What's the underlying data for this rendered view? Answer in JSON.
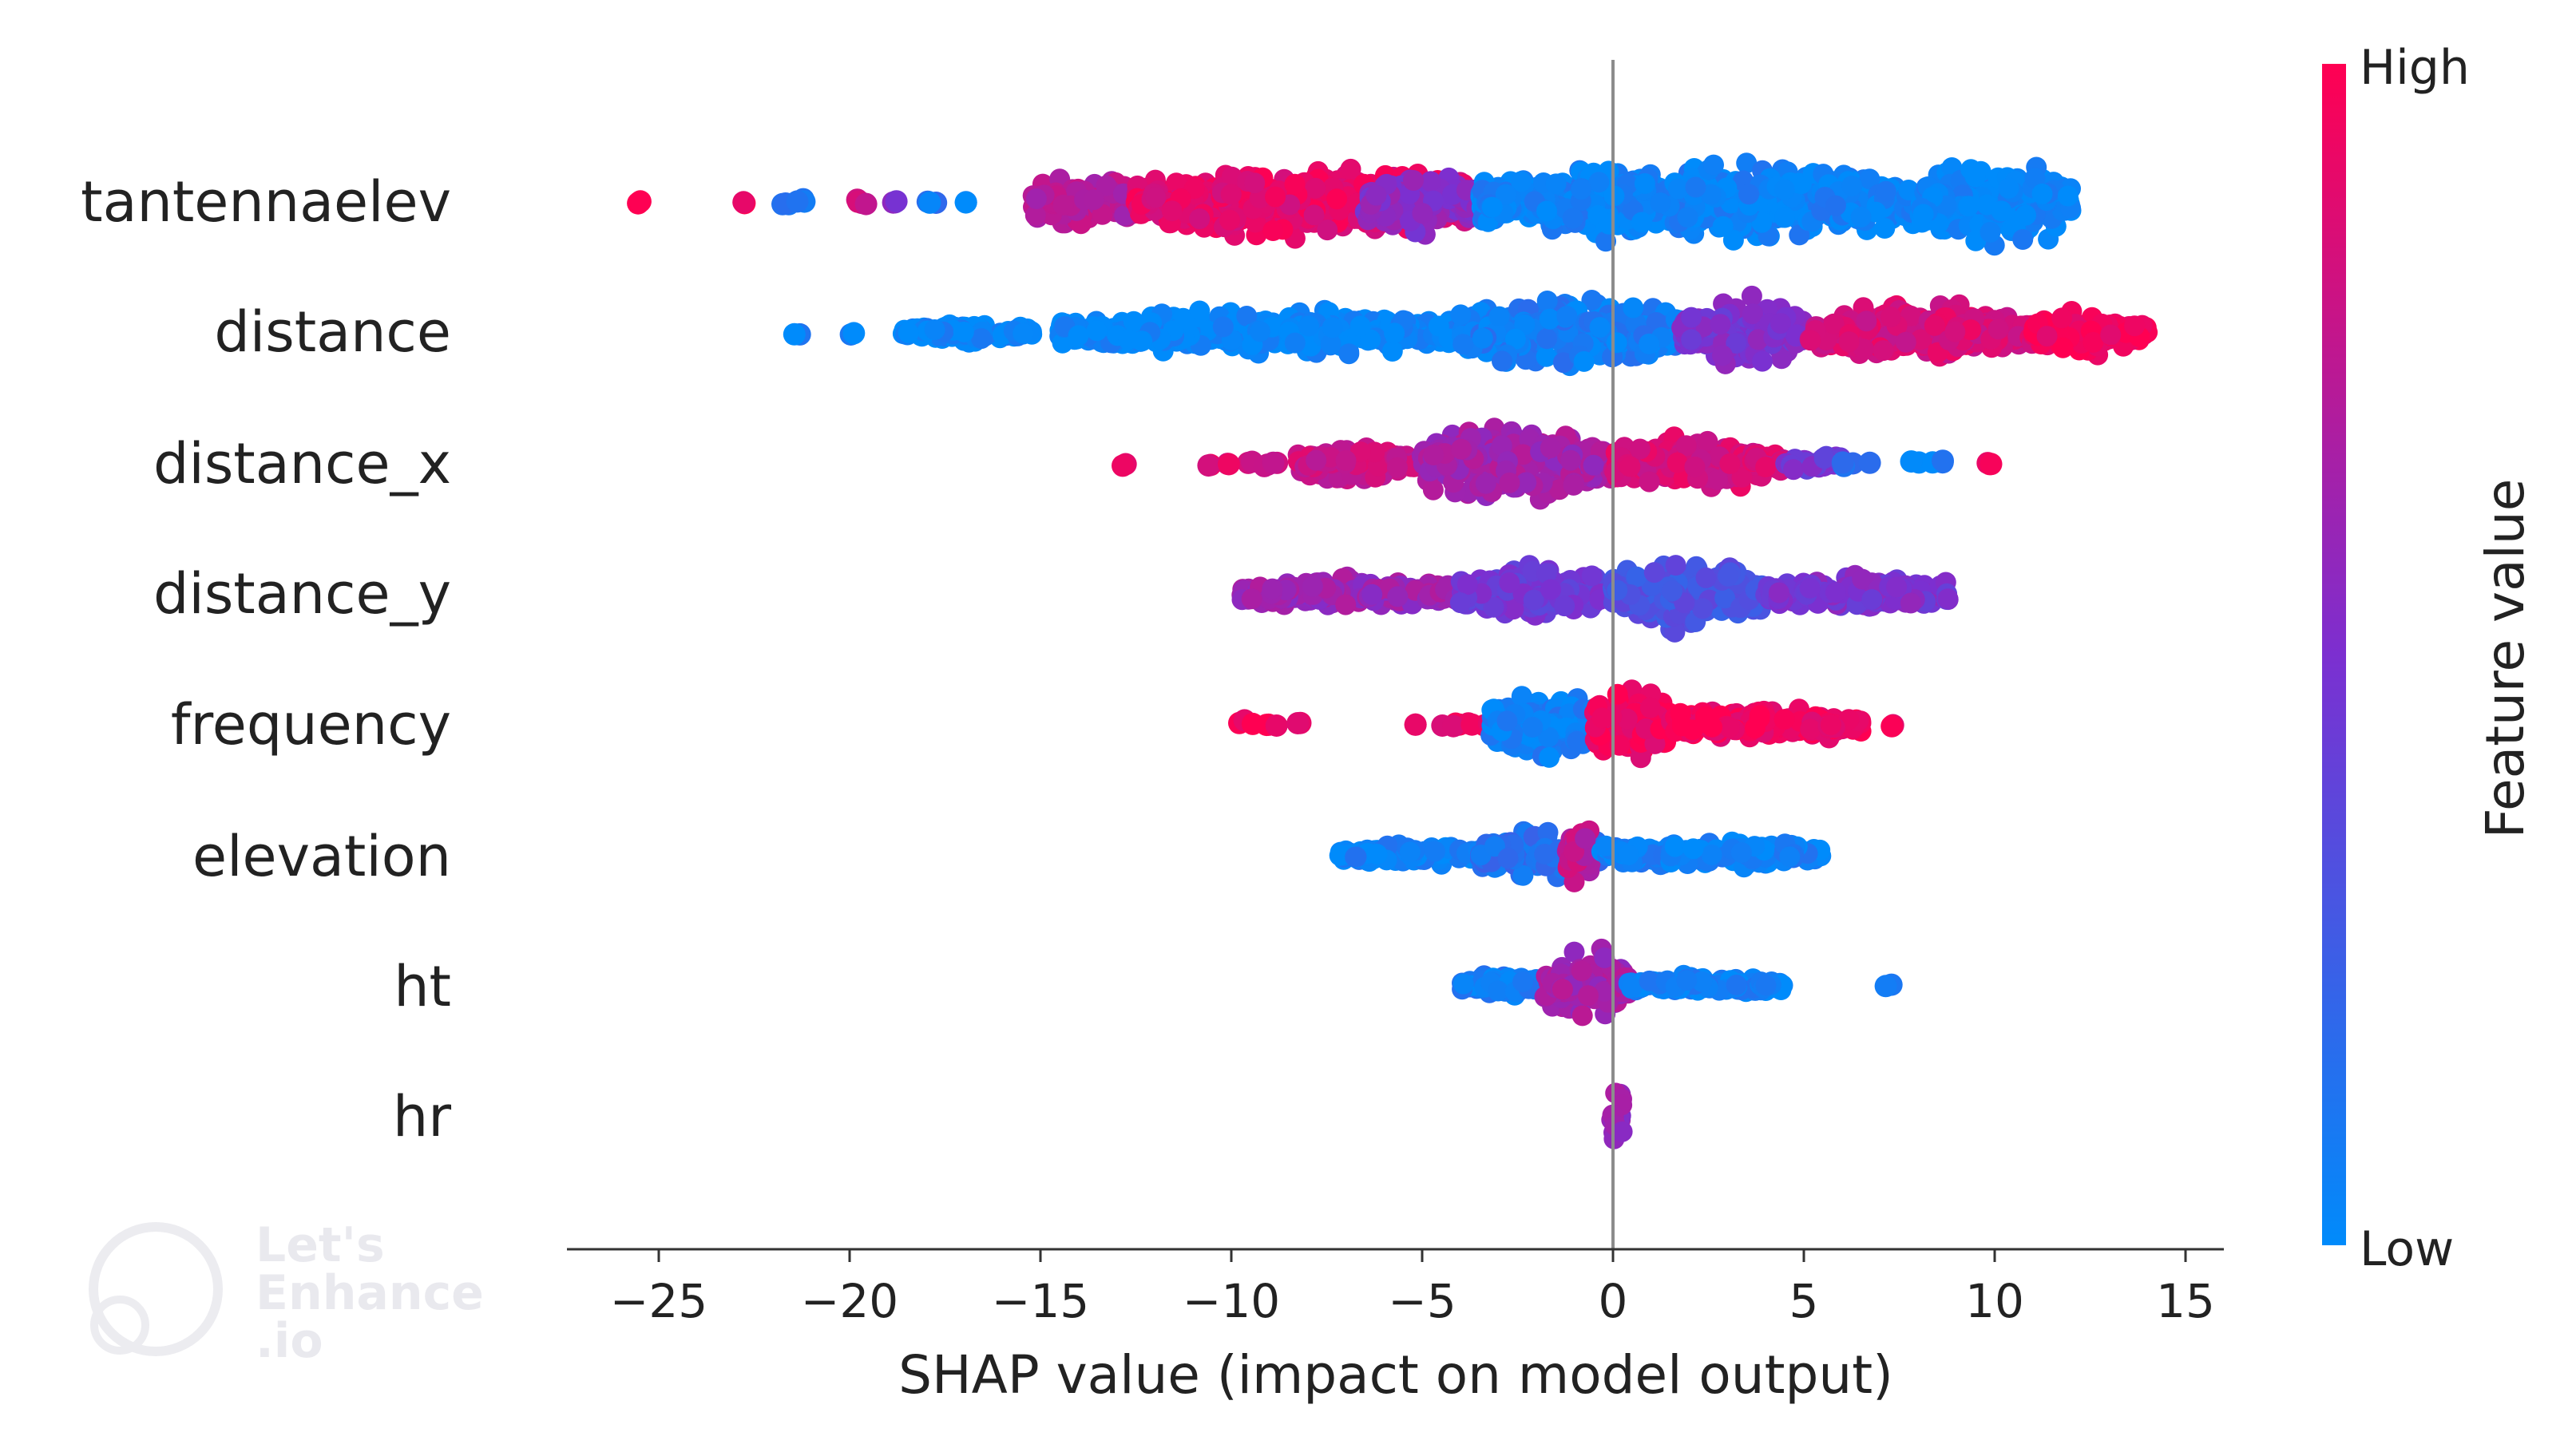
{
  "chart_data": {
    "type": "scatter",
    "subtype": "shap-beeswarm",
    "title": "",
    "xlabel": "SHAP value (impact on model output)",
    "ylabel": "",
    "xlim": [
      -27.5,
      16
    ],
    "xticks": [
      -25,
      -20,
      -15,
      -10,
      -5,
      0,
      5,
      10,
      15
    ],
    "xtick_labels": [
      "−25",
      "−20",
      "−15",
      "−10",
      "−5",
      "0",
      "5",
      "10",
      "15"
    ],
    "grid": false,
    "colorbar": {
      "label": "Feature value",
      "high_label": "High",
      "low_label": "Low",
      "high_color": "#ff0052",
      "mid_color": "#7c2fd0",
      "low_color": "#008bfb"
    },
    "features": [
      {
        "name": "tantennaelev",
        "clusters": [
          {
            "x": [
              -26,
              -25.3
            ],
            "value": 0.98,
            "dense": false
          },
          {
            "x": [
              -22.8,
              -22.6
            ],
            "value": 0.95,
            "dense": false
          },
          {
            "x": [
              -22.2,
              -21
            ],
            "value": 0.15,
            "dense": false
          },
          {
            "x": [
              -20,
              -19.2
            ],
            "value": 0.85,
            "dense": false
          },
          {
            "x": [
              -19.2,
              -18.5
            ],
            "value": 0.5,
            "dense": false
          },
          {
            "x": [
              -18.3,
              -17.6
            ],
            "value": 0.1,
            "dense": false
          },
          {
            "x": [
              -17,
              -16.8
            ],
            "value": 0.05,
            "dense": false
          },
          {
            "x": [
              -15.2,
              -12.5
            ],
            "value": 0.72,
            "dense": true,
            "amp": 0.28
          },
          {
            "x": [
              -12.5,
              -3.5
            ],
            "value": 0.9,
            "dense": true,
            "amp": 0.34
          },
          {
            "x": [
              -6.5,
              -3.5
            ],
            "value": 0.55,
            "dense": true,
            "amp": 0.3
          },
          {
            "x": [
              -3.5,
              8
            ],
            "value": 0.05,
            "dense": true,
            "amp": 0.38
          },
          {
            "x": [
              8,
              12
            ],
            "value": 0.02,
            "dense": true,
            "amp": 0.42
          }
        ]
      },
      {
        "name": "distance",
        "clusters": [
          {
            "x": [
              -21.5,
              -21.3
            ],
            "value": 0.05,
            "dense": false
          },
          {
            "x": [
              -20,
              -19.8
            ],
            "value": 0.05,
            "dense": false
          },
          {
            "x": [
              -18.6,
              -15.2
            ],
            "value": 0.03,
            "dense": true,
            "amp": 0.1
          },
          {
            "x": [
              -14.5,
              -4
            ],
            "value": 0.02,
            "dense": true,
            "amp": 0.22
          },
          {
            "x": [
              -4,
              1.8
            ],
            "value": 0.08,
            "dense": true,
            "amp": 0.38
          },
          {
            "x": [
              1.8,
              5
            ],
            "value": 0.5,
            "dense": true,
            "amp": 0.32
          },
          {
            "x": [
              5,
              11
            ],
            "value": 0.85,
            "dense": true,
            "amp": 0.28
          },
          {
            "x": [
              11,
              14
            ],
            "value": 0.97,
            "dense": true,
            "amp": 0.22
          }
        ]
      },
      {
        "name": "distance_x",
        "clusters": [
          {
            "x": [
              -12.9,
              -12.7
            ],
            "value": 0.95,
            "dense": false
          },
          {
            "x": [
              -10.7,
              -10.5
            ],
            "value": 0.9,
            "dense": false
          },
          {
            "x": [
              -10.3,
              -8.7
            ],
            "value": 0.85,
            "dense": false
          },
          {
            "x": [
              -8.3,
              -5
            ],
            "value": 0.8,
            "dense": true,
            "amp": 0.18
          },
          {
            "x": [
              -5,
              0
            ],
            "value": 0.65,
            "dense": true,
            "amp": 0.38
          },
          {
            "x": [
              0,
              4.5
            ],
            "value": 0.85,
            "dense": true,
            "amp": 0.24
          },
          {
            "x": [
              4.5,
              6
            ],
            "value": 0.45,
            "dense": true,
            "amp": 0.12
          },
          {
            "x": [
              6,
              6.8
            ],
            "value": 0.1,
            "dense": false
          },
          {
            "x": [
              7.8,
              8.8
            ],
            "value": 0.05,
            "dense": false
          },
          {
            "x": [
              9.8,
              10.3
            ],
            "value": 0.97,
            "dense": false
          }
        ]
      },
      {
        "name": "distance_y",
        "clusters": [
          {
            "x": [
              -9.8,
              -4
            ],
            "value": 0.62,
            "dense": true,
            "amp": 0.16
          },
          {
            "x": [
              -4,
              0
            ],
            "value": 0.45,
            "dense": true,
            "amp": 0.28
          },
          {
            "x": [
              0,
              4
            ],
            "value": 0.3,
            "dense": true,
            "amp": 0.36
          },
          {
            "x": [
              4,
              8.8
            ],
            "value": 0.5,
            "dense": true,
            "amp": 0.18
          }
        ]
      },
      {
        "name": "frequency",
        "clusters": [
          {
            "x": [
              -9.8,
              -8.7
            ],
            "value": 0.97,
            "dense": false
          },
          {
            "x": [
              -8.3,
              -8.1
            ],
            "value": 0.95,
            "dense": false
          },
          {
            "x": [
              -5.3,
              -3.2
            ],
            "value": 0.93,
            "dense": false
          },
          {
            "x": [
              -3.2,
              -0.5
            ],
            "value": 0.06,
            "dense": true,
            "amp": 0.36
          },
          {
            "x": [
              -0.5,
              1.5
            ],
            "value": 0.95,
            "dense": true,
            "amp": 0.4
          },
          {
            "x": [
              1.5,
              6.5
            ],
            "value": 0.95,
            "dense": true,
            "amp": 0.18
          },
          {
            "x": [
              7.3,
              7.6
            ],
            "value": 0.95,
            "dense": false
          }
        ]
      },
      {
        "name": "elevation",
        "clusters": [
          {
            "x": [
              -7.2,
              -3.5
            ],
            "value": 0.05,
            "dense": true,
            "amp": 0.1
          },
          {
            "x": [
              -3.5,
              -0.3
            ],
            "value": 0.15,
            "dense": true,
            "amp": 0.24
          },
          {
            "x": [
              -1.2,
              -0.6
            ],
            "value": 0.75,
            "dense": true,
            "amp": 0.42
          },
          {
            "x": [
              -0.3,
              5.5
            ],
            "value": 0.05,
            "dense": true,
            "amp": 0.14
          }
        ]
      },
      {
        "name": "ht",
        "clusters": [
          {
            "x": [
              -4,
              -1.8
            ],
            "value": 0.08,
            "dense": true,
            "amp": 0.12
          },
          {
            "x": [
              -1.8,
              0.4
            ],
            "value": 0.65,
            "dense": true,
            "amp": 0.34
          },
          {
            "x": [
              0.4,
              4.5
            ],
            "value": 0.05,
            "dense": true,
            "amp": 0.1
          },
          {
            "x": [
              7.1,
              7.3
            ],
            "value": 0.05,
            "dense": false
          }
        ]
      },
      {
        "name": "hr",
        "clusters": [
          {
            "x": [
              -0.05,
              0.25
            ],
            "value": 0.6,
            "dense": true,
            "amp": 0.42
          }
        ]
      }
    ]
  },
  "watermark": {
    "lines": [
      "Let's",
      "Enhance",
      ".io"
    ]
  }
}
